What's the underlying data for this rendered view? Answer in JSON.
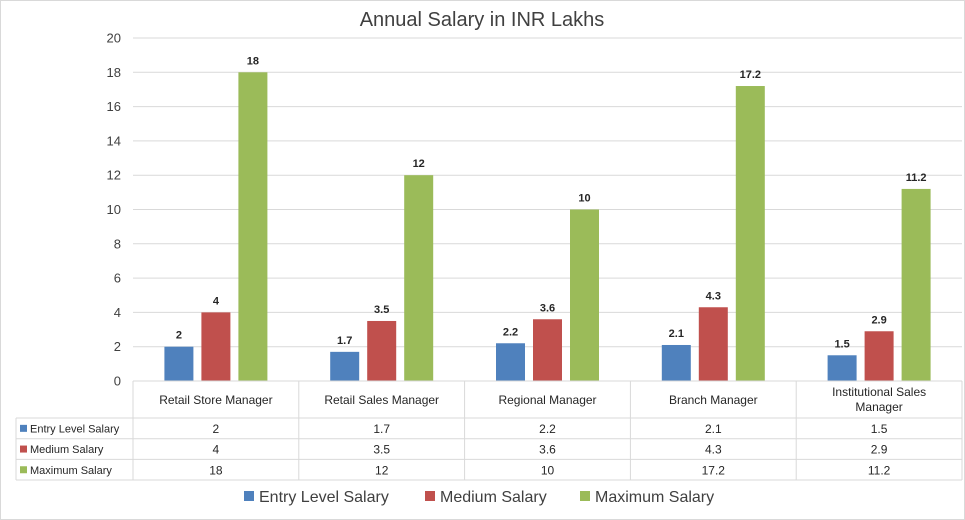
{
  "chart_data": {
    "type": "bar",
    "title": "Annual Salary in INR Lakhs",
    "categories": [
      [
        "Retail Store Manager"
      ],
      [
        "Retail Sales Manager"
      ],
      [
        "Regional Manager"
      ],
      [
        "Branch Manager"
      ],
      [
        "Institutional Sales",
        "Manager"
      ]
    ],
    "series": [
      {
        "name": "Entry Level Salary",
        "color": "#4f81bd",
        "values": [
          2,
          1.7,
          2.2,
          2.1,
          1.5
        ],
        "labels": [
          "2",
          "1.7",
          "2.2",
          "2.1",
          "1.5"
        ]
      },
      {
        "name": "Medium Salary",
        "color": "#c0504d",
        "values": [
          4,
          3.5,
          3.6,
          4.3,
          2.9
        ],
        "labels": [
          "4",
          "3.5",
          "3.6",
          "4.3",
          "2.9"
        ]
      },
      {
        "name": "Maximum Salary",
        "color": "#9bbb59",
        "values": [
          18,
          12,
          10,
          17.2,
          11.2
        ],
        "labels": [
          "18",
          "12",
          "10",
          "17.2",
          "11.2"
        ]
      }
    ],
    "yticks": [
      "0",
      "2",
      "4",
      "6",
      "8",
      "10",
      "12",
      "14",
      "16",
      "18",
      "20"
    ],
    "ylim": [
      0,
      20
    ],
    "xlabel": "",
    "ylabel": "",
    "grid": true,
    "data_table": true,
    "legend": "bottom"
  }
}
